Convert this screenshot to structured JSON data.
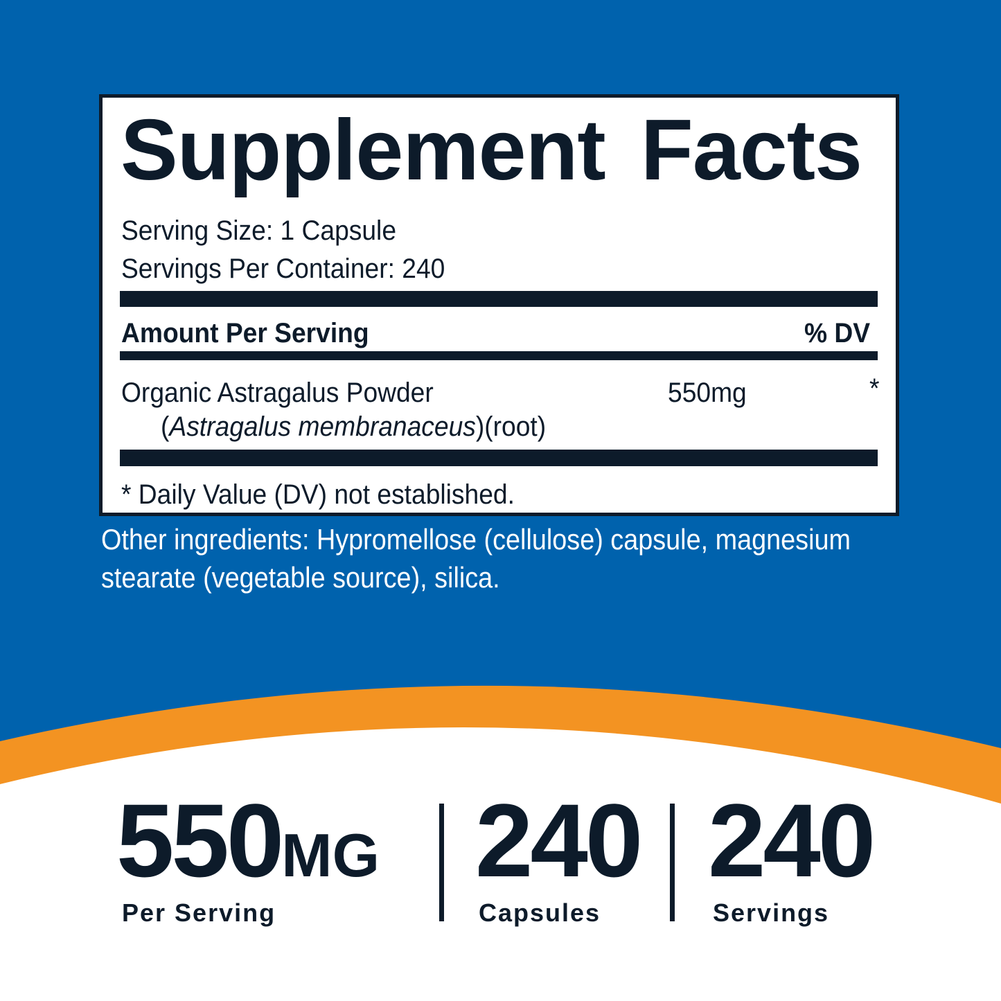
{
  "colors": {
    "background_blue": "#0062ad",
    "accent_orange": "#f39322",
    "text_dark": "#0d1b2a"
  },
  "facts": {
    "title": "Supplement Facts",
    "serving_size": "Serving Size: 1 Capsule",
    "servings_per_container": "Servings Per Container: 240",
    "amount_header": "Amount Per Serving",
    "dv_header": "% DV",
    "ingredient": {
      "name": "Organic Astragalus Powder",
      "latin_open": "(",
      "latin": "Astragalus membranaceus",
      "latin_close": ")(root)",
      "amount": "550mg",
      "dv": "*"
    },
    "footnote": "* Daily Value (DV) not established."
  },
  "other_ingredients": {
    "line1": "Other ingredients: Hypromellose (cellulose) capsule, magnesium",
    "line2": "stearate (vegetable source), silica."
  },
  "stats": [
    {
      "value": "550",
      "unit": "MG",
      "label": "Per Serving"
    },
    {
      "value": "240",
      "label": "Capsules"
    },
    {
      "value": "240",
      "label": "Servings"
    }
  ]
}
